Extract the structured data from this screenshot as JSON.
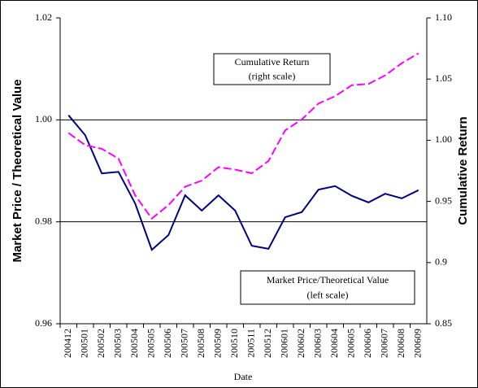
{
  "chart_data": {
    "type": "line",
    "x_label": "Date",
    "y_label": "Market Price / Theoretical Value",
    "y2_label": "Cumulative Return",
    "categories": [
      "200412",
      "200501",
      "200502",
      "200503",
      "200504",
      "200505",
      "200506",
      "200507",
      "200508",
      "200509",
      "200510",
      "200511",
      "200512",
      "200601",
      "200602",
      "200603",
      "200604",
      "200605",
      "200606",
      "200607",
      "200608",
      "200609"
    ],
    "series": [
      {
        "name": "Market Price/Theoretical Value",
        "color": "#000080",
        "axis": "y",
        "values": [
          1.0009,
          0.997,
          0.9895,
          0.9898,
          0.9836,
          0.9745,
          0.9774,
          0.9852,
          0.9822,
          0.9852,
          0.9822,
          0.9753,
          0.9747,
          0.9809,
          0.9819,
          0.9863,
          0.987,
          0.9851,
          0.9838,
          0.9855,
          0.9846,
          0.9862
        ]
      },
      {
        "name": "Cumulative Return",
        "color": "#ff00ff",
        "axis": "y2",
        "values": [
          1.006,
          0.996,
          0.993,
          0.985,
          0.955,
          0.936,
          0.947,
          0.962,
          0.967,
          0.978,
          0.976,
          0.973,
          0.983,
          1.008,
          1.017,
          1.03,
          1.036,
          1.045,
          1.046,
          1.053,
          1.063,
          1.071
        ]
      }
    ],
    "ylim": [
      0.96,
      1.02
    ],
    "yticks": [
      0.96,
      0.98,
      {
        "value": 1,
        "label": "1.00"
      },
      1.02
    ],
    "y2lim": [
      0.85,
      1.1
    ],
    "y2ticks": [
      0.85,
      0.9,
      0.95,
      {
        "value": 1,
        "label": "1.00"
      },
      1.05,
      {
        "value": 1.1,
        "label": "1.10"
      }
    ],
    "grid": true,
    "annotations": [
      {
        "lines": [
          "Cumulative Return",
          "(right scale)"
        ]
      },
      {
        "lines": [
          "Market Price/Theoretical Value",
          "(left scale)"
        ]
      }
    ]
  }
}
